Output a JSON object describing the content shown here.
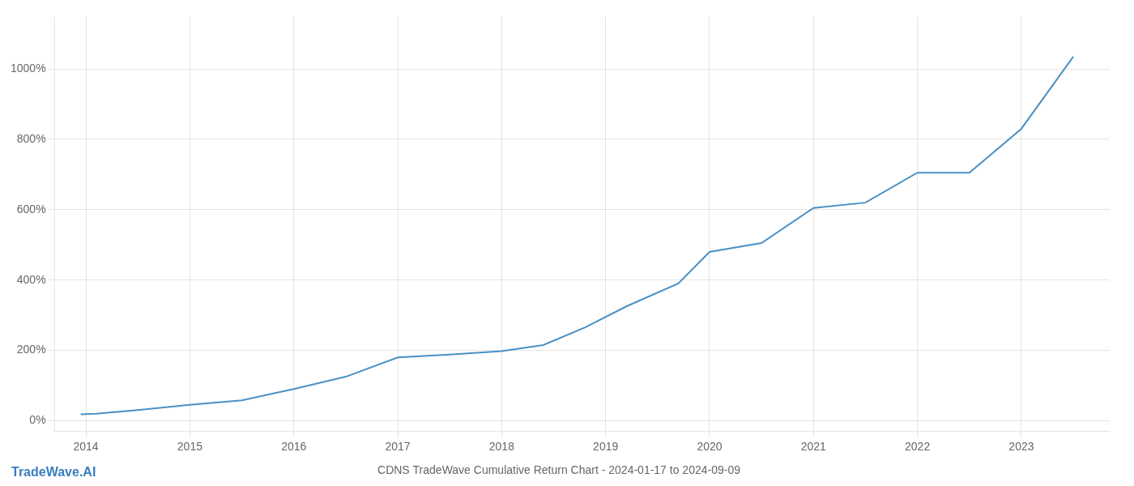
{
  "chart_data": {
    "type": "line",
    "title": "CDNS TradeWave Cumulative Return Chart - 2024-01-17 to 2024-09-09",
    "annotations": [
      "TradeWave.AI"
    ],
    "x": [
      2013.95,
      2014.1,
      2014.5,
      2015.0,
      2015.5,
      2016.0,
      2016.5,
      2017.0,
      2017.5,
      2018.0,
      2018.4,
      2018.8,
      2019.2,
      2019.7,
      2020.0,
      2020.5,
      2021.0,
      2021.5,
      2022.0,
      2022.5,
      2023.0,
      2023.5
    ],
    "values": [
      18,
      20,
      30,
      45,
      58,
      90,
      125,
      180,
      188,
      198,
      215,
      265,
      325,
      390,
      480,
      505,
      605,
      620,
      705,
      705,
      830,
      1035
    ],
    "color": "#4a90c4",
    "xlim": [
      2013.7,
      2023.85
    ],
    "xticks": [
      2014,
      2015,
      2016,
      2017,
      2018,
      2019,
      2020,
      2021,
      2022,
      2023
    ],
    "ylim": [
      -30,
      1150
    ],
    "yticks": [
      {
        "value": 0,
        "label": "0%"
      },
      {
        "value": 200,
        "label": "200%"
      },
      {
        "value": 400,
        "label": "400%"
      },
      {
        "value": 600,
        "label": "600%"
      },
      {
        "value": 800,
        "label": "800%"
      },
      {
        "value": 1000,
        "label": "1000%"
      }
    ],
    "grid": true
  }
}
